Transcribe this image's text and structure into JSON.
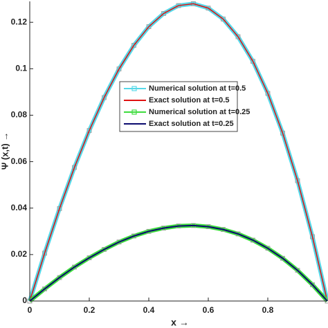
{
  "chart_data": {
    "type": "line",
    "xlabel": "x →",
    "ylabel": "Ψ (x,t) →",
    "x": [
      0,
      0.05,
      0.1,
      0.15,
      0.2,
      0.25,
      0.3,
      0.35,
      0.4,
      0.45,
      0.5,
      0.55,
      0.6,
      0.65,
      0.7,
      0.75,
      0.8,
      0.85,
      0.9,
      0.95,
      1
    ],
    "series": [
      {
        "name": "Numerical solution at t=0.5",
        "color": "#55d8e8",
        "marker": "square",
        "width": 6,
        "values": [
          0,
          0.0206,
          0.0398,
          0.0575,
          0.0734,
          0.0876,
          0.0999,
          0.1101,
          0.1181,
          0.1238,
          0.1272,
          0.128,
          0.1261,
          0.1214,
          0.1138,
          0.1032,
          0.0894,
          0.0723,
          0.0518,
          0.0277,
          0
        ]
      },
      {
        "name": "Exact solution at t=0.5",
        "color": "#e01010",
        "width": 1.5,
        "values": [
          0,
          0.0206,
          0.0398,
          0.0575,
          0.0734,
          0.0876,
          0.0999,
          0.1101,
          0.1181,
          0.1238,
          0.1272,
          0.128,
          0.1261,
          0.1214,
          0.1138,
          0.1032,
          0.0894,
          0.0723,
          0.0518,
          0.0277,
          0
        ]
      },
      {
        "name": "Numerical solution at t=0.25",
        "color": "#3ddc3d",
        "marker": "square",
        "width": 6,
        "values": [
          0,
          0.0052,
          0.0101,
          0.0146,
          0.0186,
          0.0222,
          0.0254,
          0.028,
          0.03,
          0.0314,
          0.0323,
          0.0325,
          0.032,
          0.0308,
          0.0289,
          0.0262,
          0.0227,
          0.0184,
          0.0132,
          0.007,
          0
        ]
      },
      {
        "name": "Exact solution at t=0.25",
        "color": "#0a0a6e",
        "width": 2,
        "values": [
          0,
          0.0052,
          0.0101,
          0.0146,
          0.0186,
          0.0222,
          0.0254,
          0.028,
          0.03,
          0.0314,
          0.0323,
          0.0325,
          0.032,
          0.0308,
          0.0289,
          0.0262,
          0.0227,
          0.0184,
          0.0132,
          0.007,
          0
        ]
      }
    ],
    "xlim": [
      0,
      1
    ],
    "xticks": [
      0,
      0.2,
      0.4,
      0.6,
      0.8
    ],
    "ylim": [
      0,
      0.129
    ],
    "yticks": [
      0,
      0.02,
      0.04,
      0.06,
      0.08,
      0.1,
      0.12
    ],
    "grid": false
  }
}
